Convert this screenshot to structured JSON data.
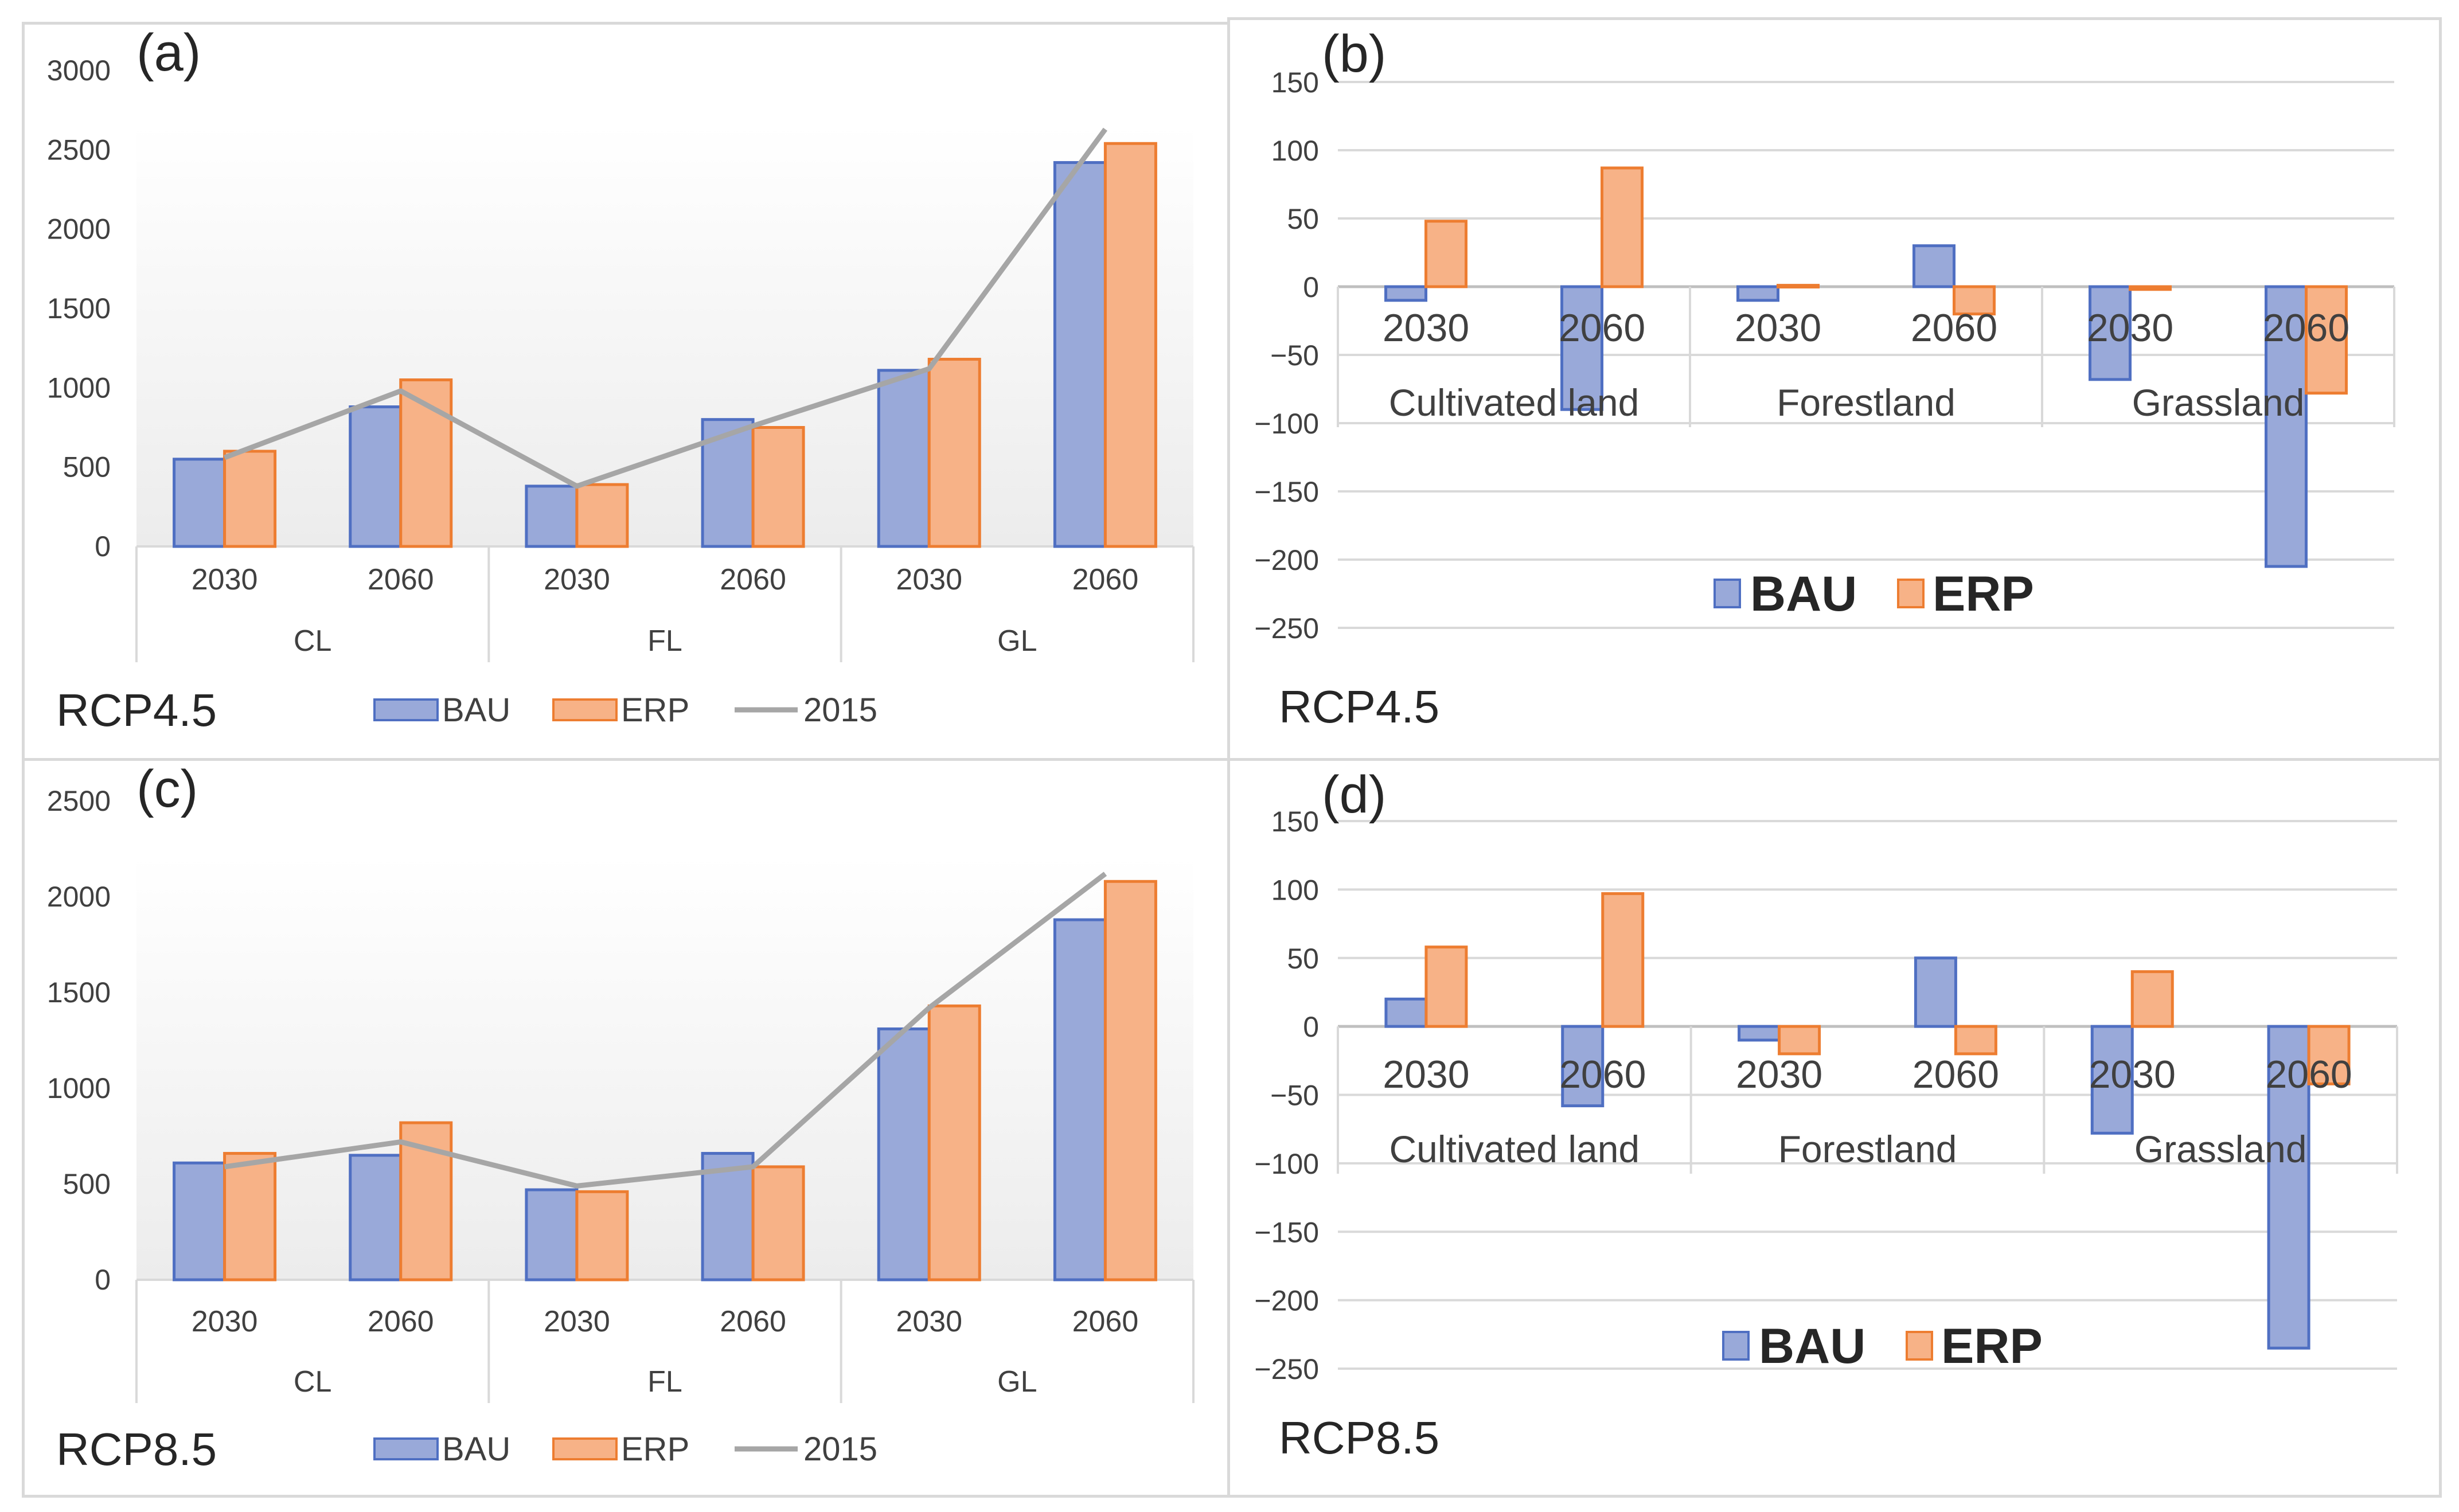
{
  "colors": {
    "bau_fill": "#99a9d9",
    "bau_stroke": "#4f6fc2",
    "erp_fill": "#f7b287",
    "erp_stroke": "#ed7d31",
    "line_2015": "#a6a6a6",
    "grid": "#d9d9d9"
  },
  "chart_data": [
    {
      "id": "a",
      "type": "bar",
      "panel_label": "(a)",
      "scenario": "RCP4.5",
      "ylim": [
        0,
        3000
      ],
      "yticks": [
        "0",
        "500",
        "1000",
        "1500",
        "2000",
        "2500",
        "3000"
      ],
      "categories": [
        "2030",
        "2060",
        "2030",
        "2060",
        "2030",
        "2060"
      ],
      "groups": [
        "CL",
        "FL",
        "GL"
      ],
      "series": [
        {
          "name": "BAU",
          "values": [
            550,
            880,
            380,
            800,
            1110,
            2420
          ]
        },
        {
          "name": "ERP",
          "values": [
            600,
            1050,
            390,
            750,
            1180,
            2540
          ]
        },
        {
          "name": "2015",
          "type": "line",
          "values": [
            560,
            980,
            380,
            760,
            1120,
            2630
          ]
        }
      ],
      "legend": [
        "BAU",
        "ERP",
        "2015"
      ]
    },
    {
      "id": "b",
      "type": "bar",
      "panel_label": "(b)",
      "scenario": "RCP4.5",
      "ylim": [
        -250,
        150
      ],
      "yticks": [
        "150",
        "100",
        "50",
        "0",
        "−50",
        "−100",
        "−150",
        "−200",
        "−250"
      ],
      "categories": [
        "2030",
        "2060",
        "2030",
        "2060",
        "2030",
        "2060"
      ],
      "groups": [
        "Cultivated land",
        "Forestland",
        "Grassland"
      ],
      "series": [
        {
          "name": "BAU",
          "values": [
            -10,
            -90,
            -10,
            30,
            -68,
            -205
          ]
        },
        {
          "name": "ERP",
          "values": [
            48,
            87,
            1,
            -20,
            -2,
            -78
          ]
        }
      ],
      "legend": [
        "BAU",
        "ERP"
      ]
    },
    {
      "id": "c",
      "type": "bar",
      "panel_label": "(c)",
      "scenario": "RCP8.5",
      "ylim": [
        0,
        2500
      ],
      "yticks": [
        "0",
        "500",
        "1000",
        "1500",
        "2000",
        "2500"
      ],
      "categories": [
        "2030",
        "2060",
        "2030",
        "2060",
        "2030",
        "2060"
      ],
      "groups": [
        "CL",
        "FL",
        "GL"
      ],
      "series": [
        {
          "name": "BAU",
          "values": [
            610,
            650,
            470,
            660,
            1310,
            1880
          ]
        },
        {
          "name": "ERP",
          "values": [
            660,
            820,
            460,
            590,
            1430,
            2080
          ]
        },
        {
          "name": "2015",
          "type": "line",
          "values": [
            590,
            720,
            490,
            590,
            1420,
            2120
          ]
        }
      ],
      "legend": [
        "BAU",
        "ERP",
        "2015"
      ]
    },
    {
      "id": "d",
      "type": "bar",
      "panel_label": "(d)",
      "scenario": "RCP8.5",
      "ylim": [
        -250,
        150
      ],
      "yticks": [
        "150",
        "100",
        "50",
        "0",
        "−50",
        "−100",
        "−150",
        "−200",
        "−250"
      ],
      "categories": [
        "2030",
        "2060",
        "2030",
        "2060",
        "2030",
        "2060"
      ],
      "groups": [
        "Cultivated land",
        "Forestland",
        "Grassland"
      ],
      "series": [
        {
          "name": "BAU",
          "values": [
            20,
            -58,
            -10,
            50,
            -78,
            -235
          ]
        },
        {
          "name": "ERP",
          "values": [
            58,
            97,
            -20,
            -20,
            40,
            -42
          ]
        }
      ],
      "legend": [
        "BAU",
        "ERP"
      ]
    }
  ]
}
